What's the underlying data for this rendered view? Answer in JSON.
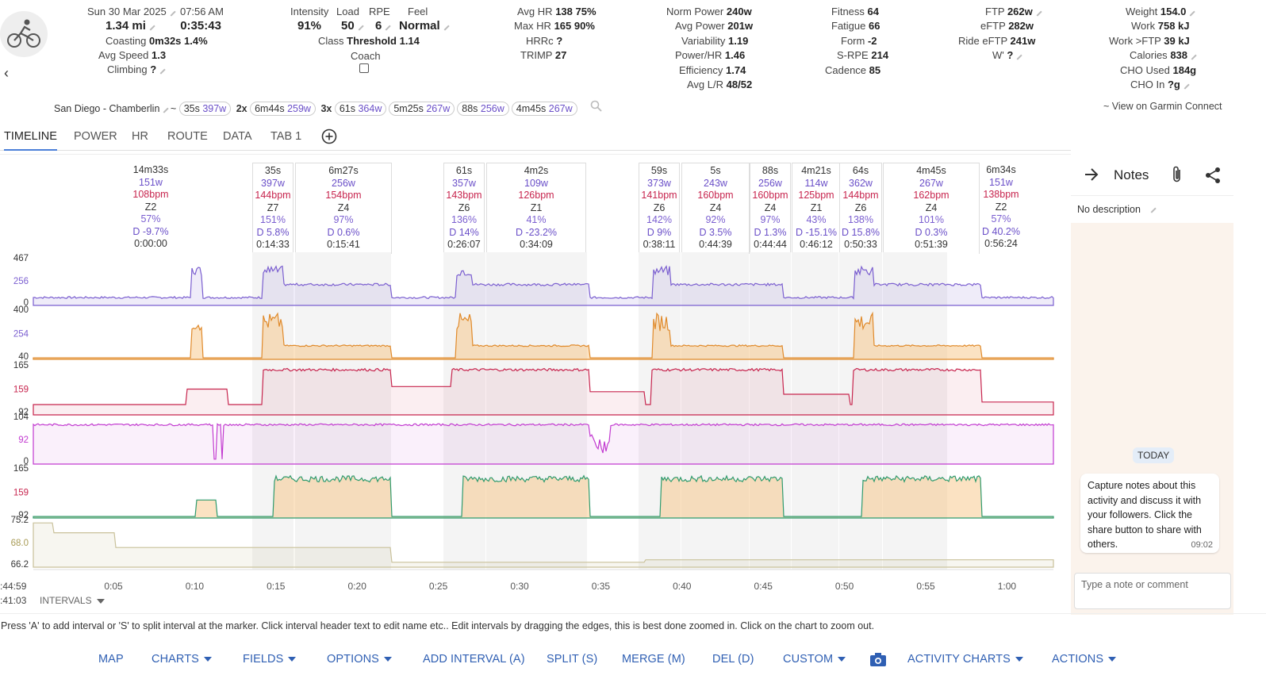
{
  "header": {
    "date": "Sun 30 Mar 2025",
    "time": "07:56 AM",
    "distance": "1.34 mi",
    "duration": "0:35:43",
    "coasting_label": "Coasting",
    "coasting_value": "0m32s 1.4%",
    "avg_speed_label": "Avg Speed",
    "avg_speed_value": "1.3",
    "climbing_label": "Climbing",
    "climbing_value": "?",
    "intensity_label": "Intensity",
    "intensity_value": "91%",
    "load_label": "Load",
    "load_value": "50",
    "rpe_label": "RPE",
    "rpe_value": "6",
    "feel_label": "Feel",
    "feel_value": "Normal",
    "class_label": "Class",
    "class_value": "Threshold 1.14",
    "coach_label": "Coach",
    "avg_hr_label": "Avg HR",
    "avg_hr_value": "138 75%",
    "max_hr_label": "Max HR",
    "max_hr_value": "165 90%",
    "hrrc_label": "HRRc",
    "hrrc_value": "?",
    "trimp_label": "TRIMP",
    "trimp_value": "27",
    "norm_power_label": "Norm Power",
    "norm_power_value": "240w",
    "avg_power_label": "Avg Power",
    "avg_power_value": "201w",
    "variability_label": "Variability",
    "variability_value": "1.19",
    "power_hr_label": "Power/HR",
    "power_hr_value": "1.46",
    "efficiency_label": "Efficiency",
    "efficiency_value": "1.74",
    "avg_lr_label": "Avg L/R",
    "avg_lr_value": "48/52",
    "fitness_label": "Fitness",
    "fitness_value": "64",
    "fatigue_label": "Fatigue",
    "fatigue_value": "66",
    "form_label": "Form",
    "form_value": "-2",
    "srpe_label": "S-RPE",
    "srpe_value": "214",
    "cadence_label": "Cadence",
    "cadence_value": "85",
    "ftp_label": "FTP",
    "ftp_value": "262w",
    "eftp_label": "eFTP",
    "eftp_value": "282w",
    "ride_eftp_label": "Ride eFTP",
    "ride_eftp_value": "241w",
    "wprime_label": "W'",
    "wprime_value": "?",
    "weight_label": "Weight",
    "weight_value": "154.0",
    "work_label": "Work",
    "work_value": "758 kJ",
    "work_ftp_label": "Work >FTP",
    "work_ftp_value": "39 kJ",
    "calories_label": "Calories",
    "calories_value": "838",
    "cho_used_label": "CHO Used",
    "cho_used_value": "184g",
    "cho_in_label": "CHO In",
    "cho_in_value": "?g"
  },
  "route_row": {
    "route": "San Diego - Chamberlin",
    "tilde": "~",
    "efforts": [
      {
        "prefix": "",
        "dur": "35s",
        "watts": "397w"
      },
      {
        "prefix": "2x",
        "dur": "6m44s",
        "watts": "259w"
      },
      {
        "prefix": "3x",
        "dur": "61s",
        "watts": "364w"
      },
      {
        "prefix": "",
        "dur": "5m25s",
        "watts": "267w"
      },
      {
        "prefix": "",
        "dur": "88s",
        "watts": "256w"
      },
      {
        "prefix": "",
        "dur": "4m45s",
        "watts": "267w"
      }
    ],
    "garmin_link": "~ View on Garmin Connect"
  },
  "tabs": [
    "TIMELINE",
    "POWER",
    "HR",
    "ROUTE",
    "DATA",
    "TAB 1"
  ],
  "intervals": [
    {
      "dur": "14m33s",
      "pow": "151w",
      "hr": "108bpm",
      "zone": "Z2",
      "pct": "57%",
      "d": "D -9.7%",
      "t": "0:00:00"
    },
    {
      "dur": "35s",
      "pow": "397w",
      "hr": "144bpm",
      "zone": "Z7",
      "pct": "151%",
      "d": "D 5.8%",
      "t": "0:14:33"
    },
    {
      "dur": "6m27s",
      "pow": "256w",
      "hr": "154bpm",
      "zone": "Z4",
      "pct": "97%",
      "d": "D 0.6%",
      "t": "0:15:41"
    },
    {
      "dur": "61s",
      "pow": "357w",
      "hr": "143bpm",
      "zone": "Z6",
      "pct": "136%",
      "d": "D 14%",
      "t": "0:26:07"
    },
    {
      "dur": "4m2s",
      "pow": "109w",
      "hr": "126bpm",
      "zone": "Z1",
      "pct": "41%",
      "d": "D -23.2%",
      "t": "0:34:09"
    },
    {
      "dur": "59s",
      "pow": "373w",
      "hr": "141bpm",
      "zone": "Z6",
      "pct": "142%",
      "d": "D 9%",
      "t": "0:38:11"
    },
    {
      "dur": "5s",
      "pow": "243w",
      "hr": "160bpm",
      "zone": "Z4",
      "pct": "92%",
      "d": "D 3.5%",
      "t": "0:44:39"
    },
    {
      "dur": "88s",
      "pow": "256w",
      "hr": "160bpm",
      "zone": "Z4",
      "pct": "97%",
      "d": "D 1.3%",
      "t": "0:44:44"
    },
    {
      "dur": "4m21s",
      "pow": "114w",
      "hr": "125bpm",
      "zone": "Z1",
      "pct": "43%",
      "d": "D -15.1%",
      "t": "0:46:12"
    },
    {
      "dur": "64s",
      "pow": "362w",
      "hr": "144bpm",
      "zone": "Z6",
      "pct": "138%",
      "d": "D 15.8%",
      "t": "0:50:33"
    },
    {
      "dur": "4m45s",
      "pow": "267w",
      "hr": "162bpm",
      "zone": "Z4",
      "pct": "101%",
      "d": "D 0.3%",
      "t": "0:51:39"
    },
    {
      "dur": "6m34s",
      "pow": "151w",
      "hr": "138bpm",
      "zone": "Z2",
      "pct": "57%",
      "d": "D 40.2%",
      "t": "0:56:24"
    }
  ],
  "axis_labels": {
    "power": [
      "467",
      "256",
      "0"
    ],
    "wbal": [
      "400",
      "254",
      "40"
    ],
    "hr": [
      "165",
      "159",
      "92"
    ],
    "cad": [
      "104",
      "92",
      "0"
    ],
    "hrz": [
      "165",
      "159",
      "92"
    ],
    "alt": [
      "75.2",
      "68.0",
      "66.2"
    ]
  },
  "time_ticks": [
    "0:05",
    "0:10",
    "0:15",
    "0:20",
    "0:25",
    "0:30",
    "0:35",
    "0:40",
    "0:45",
    "0:50",
    "0:55",
    "1:00"
  ],
  "cursor": {
    "time": ":44:59",
    "interval": ":41:03"
  },
  "intervals_toggle": "INTERVALS",
  "help_text": "Press 'A' to add interval or 'S' to split interval at the marker. Click interval header text to edit name etc.. Edit intervals by dragging the edges, this is best done zoomed in. Click on the chart to zoom out.",
  "bottom_bar": [
    "MAP",
    "CHARTS",
    "FIELDS",
    "OPTIONS",
    "ADD INTERVAL (A)",
    "SPLIT (S)",
    "MERGE (M)",
    "DEL (D)",
    "CUSTOM",
    "ACTIVITY CHARTS",
    "ACTIONS"
  ],
  "notes": {
    "title": "Notes",
    "description": "No description",
    "today": "TODAY",
    "message": "Capture notes about this activity and discuss it with your followers. Click the share button to share with others.",
    "message_time": "09:02",
    "input_placeholder": "Type a note or comment"
  },
  "colors": {
    "power": "#7b5fd0",
    "hr": "#c7254e",
    "cadence": "#c23ad0",
    "accent": "#2f5fb3",
    "altitude": "#c9c19a"
  }
}
